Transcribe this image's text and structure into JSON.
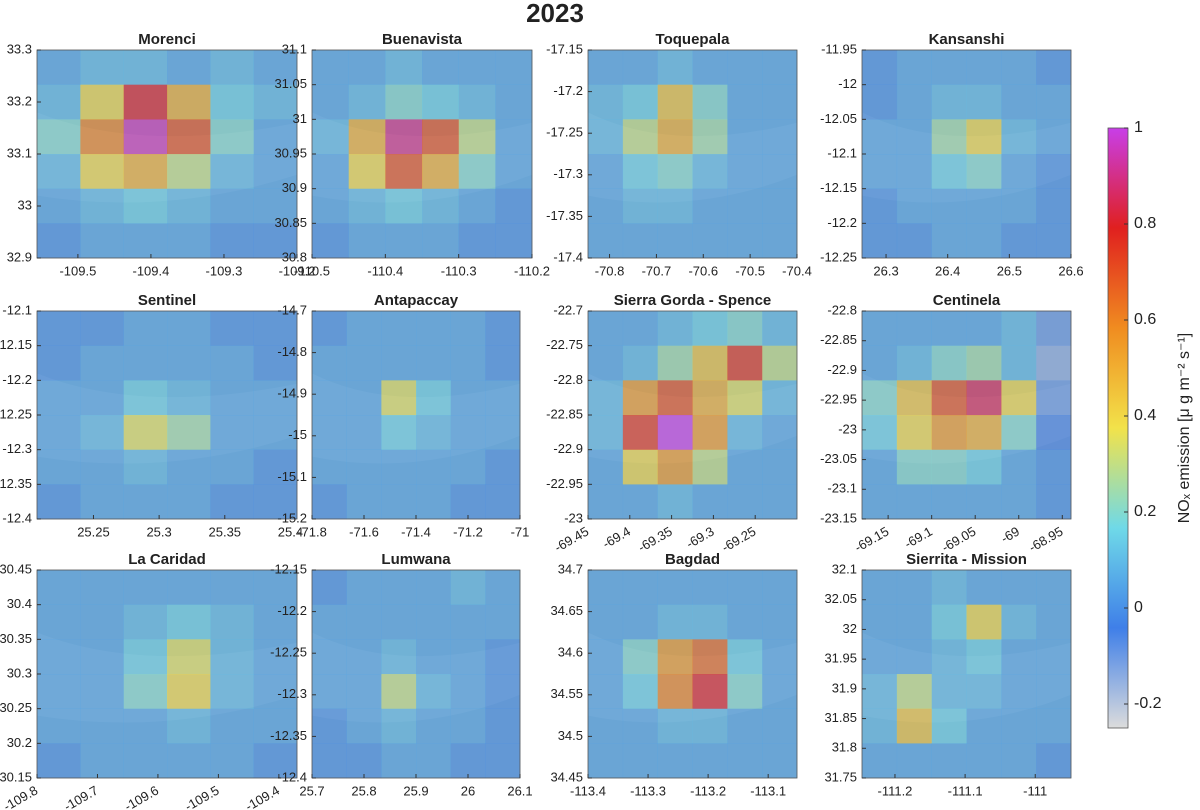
{
  "title": "2023",
  "colorbar": {
    "label": "NOₓ emission [μ g m⁻² s⁻¹]",
    "lim": [
      -0.25,
      1
    ],
    "ticks": [
      -0.2,
      0,
      0.2,
      0.4,
      0.6,
      0.8,
      1
    ],
    "colormap": [
      "#dcdcdc",
      "#3f7fe8",
      "#6fd9e8",
      "#f2e24a",
      "#f08c20",
      "#e0201f",
      "#c83ee8"
    ]
  },
  "chart_data": [
    {
      "type": "heatmap",
      "title": "Morenci",
      "xlim": [
        -109.556,
        -109.2
      ],
      "ylim": [
        32.9,
        33.3
      ],
      "xticks": [
        -109.5,
        -109.4,
        -109.3,
        -109.2
      ],
      "yticks": [
        32.9,
        33,
        33.1,
        33.2,
        33.3
      ],
      "values": [
        [
          0.05,
          0.1,
          0.1,
          0.05,
          0.1,
          0.05
        ],
        [
          0.1,
          0.4,
          0.8,
          0.5,
          0.15,
          0.1
        ],
        [
          0.2,
          0.6,
          0.95,
          0.7,
          0.2,
          0.05
        ],
        [
          0.1,
          0.4,
          0.5,
          0.3,
          0.1,
          0.05
        ],
        [
          0.05,
          0.1,
          0.15,
          0.1,
          0.05,
          0.05
        ],
        [
          0,
          0.05,
          0.05,
          0.05,
          0,
          0
        ]
      ]
    },
    {
      "type": "heatmap",
      "title": "Buenavista",
      "xlim": [
        -110.5,
        -110.2
      ],
      "ylim": [
        30.8,
        31.1
      ],
      "xticks": [
        -110.5,
        -110.4,
        -110.3,
        -110.2
      ],
      "yticks": [
        30.8,
        30.85,
        30.9,
        30.95,
        31,
        31.05,
        31.1
      ],
      "values": [
        [
          0.05,
          0.05,
          0.1,
          0.05,
          0.05,
          0.05
        ],
        [
          0.05,
          0.1,
          0.2,
          0.15,
          0.1,
          0.05
        ],
        [
          0.1,
          0.5,
          0.9,
          0.7,
          0.3,
          0.05
        ],
        [
          0.05,
          0.4,
          0.7,
          0.5,
          0.2,
          0.05
        ],
        [
          0.05,
          0.1,
          0.15,
          0.1,
          0.05,
          0
        ],
        [
          0,
          0.05,
          0.05,
          0.05,
          0,
          0
        ]
      ]
    },
    {
      "type": "heatmap",
      "title": "Toquepala",
      "xlim": [
        -70.846,
        -70.4
      ],
      "ylim": [
        -17.4,
        -17.15
      ],
      "xticks": [
        -70.8,
        -70.7,
        -70.6,
        -70.5,
        -70.4
      ],
      "yticks": [
        -17.4,
        -17.35,
        -17.3,
        -17.25,
        -17.2,
        -17.15
      ],
      "values": [
        [
          0.05,
          0.05,
          0.1,
          0.05,
          0.05,
          0.05
        ],
        [
          0.1,
          0.15,
          0.45,
          0.2,
          0.05,
          0.05
        ],
        [
          0.1,
          0.3,
          0.5,
          0.25,
          0.05,
          0.05
        ],
        [
          0.05,
          0.15,
          0.2,
          0.1,
          0.05,
          0.05
        ],
        [
          0.05,
          0.1,
          0.1,
          0.05,
          0.05,
          0.05
        ],
        [
          0.05,
          0.05,
          0.05,
          0.05,
          0.05,
          0.05
        ]
      ]
    },
    {
      "type": "heatmap",
      "title": "Kansanshi",
      "xlim": [
        26.261,
        26.6
      ],
      "ylim": [
        -12.25,
        -11.95
      ],
      "xticks": [
        26.3,
        26.4,
        26.5,
        26.6
      ],
      "yticks": [
        -12.25,
        -12.2,
        -12.15,
        -12.1,
        -12.05,
        -12,
        -11.95
      ],
      "values": [
        [
          0,
          0.05,
          0.05,
          0.05,
          0.05,
          0
        ],
        [
          0,
          0.05,
          0.1,
          0.1,
          0.05,
          0.05
        ],
        [
          0.05,
          0.05,
          0.25,
          0.4,
          0.1,
          0.05
        ],
        [
          0.05,
          0.05,
          0.15,
          0.2,
          0.05,
          0
        ],
        [
          0,
          0.05,
          0.05,
          0.05,
          0.05,
          0
        ],
        [
          0,
          0,
          0.05,
          0.05,
          0,
          0
        ]
      ]
    },
    {
      "type": "heatmap",
      "title": "Sentinel",
      "xlim": [
        25.207,
        25.405
      ],
      "ylim": [
        -12.4,
        -12.1
      ],
      "xticks": [
        25.25,
        25.3,
        25.35,
        25.4
      ],
      "yticks": [
        -12.4,
        -12.35,
        -12.3,
        -12.25,
        -12.2,
        -12.15,
        -12.1
      ],
      "values": [
        [
          0,
          0,
          0.05,
          0.05,
          0,
          0
        ],
        [
          0,
          0.05,
          0.05,
          0.05,
          0.05,
          0
        ],
        [
          0.05,
          0.05,
          0.15,
          0.1,
          0.05,
          0.05
        ],
        [
          0.05,
          0.1,
          0.35,
          0.25,
          0.05,
          0.05
        ],
        [
          0.05,
          0.05,
          0.1,
          0.05,
          0.05,
          0
        ],
        [
          0,
          0.05,
          0.05,
          0.05,
          0,
          0
        ]
      ]
    },
    {
      "type": "heatmap",
      "title": "Antapaccay",
      "xlim": [
        -71.8,
        -71
      ],
      "ylim": [
        -15.2,
        -14.7
      ],
      "xticks": [
        -71.8,
        -71.6,
        -71.4,
        -71.2,
        -71
      ],
      "yticks": [
        -15.2,
        -15.1,
        -15,
        -14.9,
        -14.8,
        -14.7
      ],
      "values": [
        [
          0,
          0.05,
          0.05,
          0.05,
          0.05,
          0
        ],
        [
          0.05,
          0.05,
          0.05,
          0.05,
          0.05,
          0
        ],
        [
          0.05,
          0.05,
          0.35,
          0.15,
          0.05,
          0.05
        ],
        [
          0.05,
          0.05,
          0.15,
          0.1,
          0.05,
          0.05
        ],
        [
          0.05,
          0.05,
          0.05,
          0.05,
          0.05,
          0
        ],
        [
          0,
          0.05,
          0.05,
          0.05,
          0,
          0
        ]
      ]
    },
    {
      "type": "heatmap",
      "title": "Sierra Gorda - Spence",
      "xlim": [
        -69.45,
        -69.2
      ],
      "ylim": [
        -23,
        -22.7
      ],
      "xticks": [
        -69.45,
        -69.4,
        -69.35,
        -69.3,
        -69.25
      ],
      "yticks": [
        -23,
        -22.95,
        -22.9,
        -22.85,
        -22.8,
        -22.75,
        -22.7
      ],
      "xtick_rotation": -30,
      "values": [
        [
          0.05,
          0.05,
          0.1,
          0.15,
          0.2,
          0.1
        ],
        [
          0.05,
          0.1,
          0.25,
          0.45,
          0.75,
          0.3
        ],
        [
          0.1,
          0.55,
          0.7,
          0.5,
          0.35,
          0.1
        ],
        [
          0.1,
          0.75,
          1,
          0.55,
          0.1,
          0.05
        ],
        [
          0.05,
          0.4,
          0.55,
          0.3,
          0.05,
          0.05
        ],
        [
          0.05,
          0.05,
          0.1,
          0.05,
          0.05,
          0.05
        ]
      ]
    },
    {
      "type": "heatmap",
      "title": "Centinela",
      "xlim": [
        -69.18,
        -68.94
      ],
      "ylim": [
        -23.15,
        -22.8
      ],
      "xticks": [
        -69.15,
        -69.1,
        -69.05,
        -69,
        -68.95
      ],
      "yticks": [
        -23.15,
        -23.1,
        -23.05,
        -23,
        -22.95,
        -22.9,
        -22.85,
        -22.8
      ],
      "xtick_rotation": -30,
      "values": [
        [
          0.05,
          0.05,
          0.05,
          0.05,
          0.1,
          -0.1
        ],
        [
          0.05,
          0.1,
          0.2,
          0.25,
          0.1,
          -0.15
        ],
        [
          0.2,
          0.45,
          0.7,
          0.85,
          0.4,
          -0.1
        ],
        [
          0.15,
          0.4,
          0.55,
          0.5,
          0.2,
          -0.05
        ],
        [
          0.05,
          0.2,
          0.2,
          0.15,
          0.05,
          0
        ],
        [
          0.05,
          0.05,
          0.05,
          0.05,
          0.05,
          0
        ]
      ]
    },
    {
      "type": "heatmap",
      "title": "La Caridad",
      "xlim": [
        -109.8,
        -109.37
      ],
      "ylim": [
        30.15,
        30.45
      ],
      "xticks": [
        -109.8,
        -109.7,
        -109.6,
        -109.5,
        -109.4
      ],
      "yticks": [
        30.15,
        30.2,
        30.25,
        30.3,
        30.35,
        30.4,
        30.45
      ],
      "xtick_rotation": -30,
      "values": [
        [
          0.05,
          0.05,
          0.05,
          0.05,
          0.05,
          0.05
        ],
        [
          0.05,
          0.05,
          0.1,
          0.15,
          0.1,
          0.05
        ],
        [
          0.05,
          0.05,
          0.15,
          0.35,
          0.1,
          0.05
        ],
        [
          0.05,
          0.05,
          0.2,
          0.4,
          0.1,
          0.05
        ],
        [
          0.05,
          0.05,
          0.05,
          0.1,
          0.05,
          0.05
        ],
        [
          0,
          0.05,
          0.05,
          0.05,
          0.05,
          0
        ]
      ]
    },
    {
      "type": "heatmap",
      "title": "Lumwana",
      "xlim": [
        25.7,
        26.1
      ],
      "ylim": [
        -12.4,
        -12.15
      ],
      "xticks": [
        25.7,
        25.8,
        25.9,
        26,
        26.1
      ],
      "yticks": [
        -12.4,
        -12.35,
        -12.3,
        -12.25,
        -12.2,
        -12.15
      ],
      "values": [
        [
          0,
          0.05,
          0.05,
          0.05,
          0.1,
          0.05
        ],
        [
          0.05,
          0.05,
          0.05,
          0.05,
          0.05,
          0.05
        ],
        [
          0.05,
          0.05,
          0.1,
          0.05,
          0.05,
          0
        ],
        [
          0.05,
          0.05,
          0.3,
          0.1,
          0.05,
          0
        ],
        [
          0,
          0.05,
          0.1,
          0.05,
          0.05,
          0
        ],
        [
          0,
          0,
          0.05,
          0.05,
          0,
          0
        ]
      ]
    },
    {
      "type": "heatmap",
      "title": "Bagdad",
      "xlim": [
        -113.4,
        -113.052
      ],
      "ylim": [
        34.45,
        34.7
      ],
      "xticks": [
        -113.4,
        -113.3,
        -113.2,
        -113.1
      ],
      "yticks": [
        34.45,
        34.5,
        34.55,
        34.6,
        34.65,
        34.7
      ],
      "values": [
        [
          0.05,
          0.05,
          0.05,
          0.05,
          0.05,
          0.05
        ],
        [
          0.05,
          0.05,
          0.1,
          0.1,
          0.05,
          0.05
        ],
        [
          0.05,
          0.2,
          0.55,
          0.65,
          0.15,
          0.05
        ],
        [
          0.05,
          0.15,
          0.6,
          0.8,
          0.2,
          0.05
        ],
        [
          0.05,
          0.05,
          0.1,
          0.1,
          0.05,
          0.05
        ],
        [
          0.05,
          0.05,
          0.05,
          0.05,
          0.05,
          0.05
        ]
      ]
    },
    {
      "type": "heatmap",
      "title": "Sierrita - Mission",
      "xlim": [
        -111.247,
        -110.949
      ],
      "ylim": [
        31.75,
        32.1
      ],
      "xticks": [
        -111.2,
        -111.1,
        -111
      ],
      "yticks": [
        31.75,
        31.8,
        31.85,
        31.9,
        31.95,
        32,
        32.05,
        32.1
      ],
      "values": [
        [
          0.05,
          0.05,
          0.1,
          0.05,
          0.05,
          0.05
        ],
        [
          0.05,
          0.05,
          0.15,
          0.4,
          0.1,
          0.05
        ],
        [
          0.05,
          0.05,
          0.1,
          0.15,
          0.05,
          0.05
        ],
        [
          0.1,
          0.3,
          0.1,
          0.1,
          0.05,
          0.05
        ],
        [
          0.1,
          0.45,
          0.15,
          0.05,
          0.05,
          0.05
        ],
        [
          0.05,
          0.05,
          0.05,
          0.05,
          0.05,
          0
        ]
      ]
    }
  ]
}
